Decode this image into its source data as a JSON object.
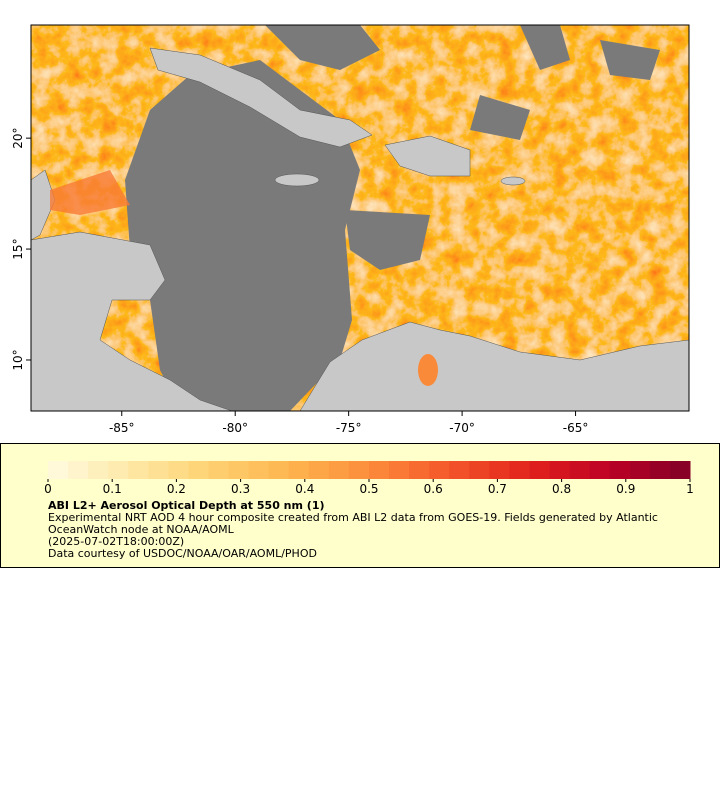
{
  "chart_data": {
    "type": "map",
    "xlim": [
      -89,
      -60
    ],
    "ylim": [
      7.7,
      25.1
    ],
    "xticks": [
      {
        "value": -85,
        "label": "-85°"
      },
      {
        "value": -80,
        "label": "-80°"
      },
      {
        "value": -75,
        "label": "-75°"
      },
      {
        "value": -70,
        "label": "-70°"
      },
      {
        "value": -65,
        "label": "-65°"
      }
    ],
    "yticks": [
      {
        "value": 10,
        "label": "10°"
      },
      {
        "value": 15,
        "label": "15°"
      },
      {
        "value": 20,
        "label": "20°"
      }
    ],
    "colorbar": {
      "lim": [
        0,
        1
      ],
      "ticks": [
        0,
        0.1,
        0.2,
        0.3,
        0.4,
        0.5,
        0.6,
        0.7,
        0.8,
        0.9,
        1
      ],
      "colors": [
        "#fffbe0",
        "#fee9a8",
        "#fed272",
        "#fdb54e",
        "#fc8d3c",
        "#f4572a",
        "#e2221c",
        "#bd0026",
        "#800026"
      ]
    },
    "legend_title": "ABI L2+ Aerosol Optical Depth at 550 nm (1)",
    "legend_lines": [
      "Experimental NRT AOD 4 hour composite created from ABI L2 data from GOES-19. Fields generated by Atlantic OceanWatch node at NOAA/AOML",
      "(2025-07-02T18:00:00Z)",
      "Data courtesy of USDOC/NOAA/OAR/AOML/PHOD"
    ]
  }
}
